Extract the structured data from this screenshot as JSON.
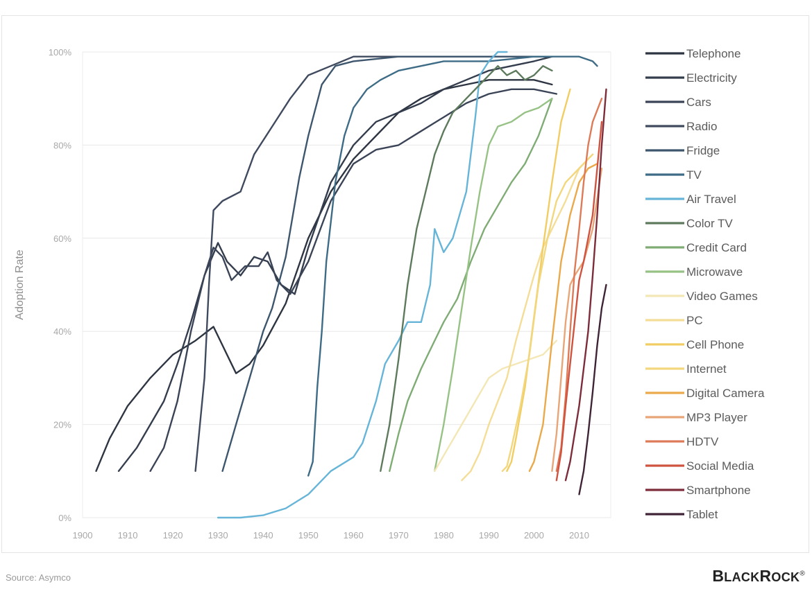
{
  "chart_data": {
    "type": "line",
    "title": "",
    "xlabel": "",
    "ylabel": "Adoption Rate",
    "xlim": [
      1900,
      2017
    ],
    "ylim": [
      0,
      100
    ],
    "x_ticks": [
      1900,
      1910,
      1920,
      1930,
      1940,
      1950,
      1960,
      1970,
      1980,
      1990,
      2000,
      2010
    ],
    "y_ticks": [
      0,
      20,
      40,
      60,
      80,
      100
    ],
    "y_tick_labels": [
      "0%",
      "20%",
      "40%",
      "60%",
      "80%",
      "100%"
    ],
    "grid": "horizontal",
    "legend_position": "right",
    "series": [
      {
        "name": "Telephone",
        "color": "#2e3542",
        "points": [
          [
            1903,
            10
          ],
          [
            1906,
            17
          ],
          [
            1910,
            24
          ],
          [
            1915,
            30
          ],
          [
            1920,
            35
          ],
          [
            1925,
            38
          ],
          [
            1929,
            41
          ],
          [
            1931,
            37
          ],
          [
            1934,
            31
          ],
          [
            1937,
            33
          ],
          [
            1940,
            37
          ],
          [
            1945,
            46
          ],
          [
            1950,
            60
          ],
          [
            1955,
            70
          ],
          [
            1960,
            77
          ],
          [
            1965,
            82
          ],
          [
            1970,
            87
          ],
          [
            1975,
            90
          ],
          [
            1980,
            92
          ],
          [
            1985,
            93
          ],
          [
            1990,
            94
          ],
          [
            1995,
            94
          ],
          [
            2000,
            94
          ],
          [
            2004,
            93
          ]
        ]
      },
      {
        "name": "Electricity",
        "color": "#343d4d",
        "points": [
          [
            1908,
            10
          ],
          [
            1912,
            15
          ],
          [
            1915,
            20
          ],
          [
            1918,
            25
          ],
          [
            1921,
            33
          ],
          [
            1924,
            42
          ],
          [
            1927,
            52
          ],
          [
            1930,
            59
          ],
          [
            1932,
            55
          ],
          [
            1935,
            52
          ],
          [
            1938,
            56
          ],
          [
            1941,
            55
          ],
          [
            1944,
            50
          ],
          [
            1947,
            48
          ],
          [
            1950,
            58
          ],
          [
            1955,
            72
          ],
          [
            1960,
            80
          ],
          [
            1965,
            85
          ],
          [
            1970,
            87
          ],
          [
            1975,
            89
          ],
          [
            1980,
            92
          ],
          [
            1985,
            94
          ],
          [
            1990,
            96
          ],
          [
            2000,
            98
          ],
          [
            2004,
            99
          ]
        ]
      },
      {
        "name": "Cars",
        "color": "#3a4456",
        "points": [
          [
            1915,
            10
          ],
          [
            1918,
            15
          ],
          [
            1921,
            25
          ],
          [
            1924,
            40
          ],
          [
            1927,
            52
          ],
          [
            1929,
            58
          ],
          [
            1931,
            56
          ],
          [
            1933,
            51
          ],
          [
            1936,
            54
          ],
          [
            1939,
            54
          ],
          [
            1941,
            57
          ],
          [
            1943,
            51
          ],
          [
            1946,
            48
          ],
          [
            1950,
            55
          ],
          [
            1955,
            68
          ],
          [
            1960,
            76
          ],
          [
            1965,
            79
          ],
          [
            1970,
            80
          ],
          [
            1975,
            83
          ],
          [
            1980,
            86
          ],
          [
            1985,
            89
          ],
          [
            1990,
            91
          ],
          [
            1995,
            92
          ],
          [
            2000,
            92
          ],
          [
            2005,
            91
          ]
        ]
      },
      {
        "name": "Radio",
        "color": "#3f4a5e",
        "points": [
          [
            1925,
            10
          ],
          [
            1927,
            30
          ],
          [
            1928,
            50
          ],
          [
            1929,
            66
          ],
          [
            1931,
            68
          ],
          [
            1935,
            70
          ],
          [
            1938,
            78
          ],
          [
            1942,
            84
          ],
          [
            1946,
            90
          ],
          [
            1950,
            95
          ],
          [
            1955,
            97
          ],
          [
            1960,
            99
          ],
          [
            1970,
            99
          ],
          [
            1980,
            99
          ],
          [
            1990,
            99
          ],
          [
            2000,
            99
          ],
          [
            2004,
            99
          ]
        ]
      },
      {
        "name": "Fridge",
        "color": "#3e566d",
        "points": [
          [
            1931,
            10
          ],
          [
            1934,
            20
          ],
          [
            1937,
            30
          ],
          [
            1940,
            40
          ],
          [
            1942,
            45
          ],
          [
            1945,
            56
          ],
          [
            1948,
            73
          ],
          [
            1950,
            82
          ],
          [
            1953,
            93
          ],
          [
            1956,
            97
          ],
          [
            1960,
            98
          ],
          [
            1970,
            99
          ],
          [
            1980,
            99
          ],
          [
            1990,
            99
          ],
          [
            2004,
            99
          ]
        ]
      },
      {
        "name": "TV",
        "color": "#3e6b85",
        "points": [
          [
            1950,
            9
          ],
          [
            1951,
            12
          ],
          [
            1952,
            28
          ],
          [
            1953,
            40
          ],
          [
            1954,
            55
          ],
          [
            1956,
            72
          ],
          [
            1958,
            82
          ],
          [
            1960,
            88
          ],
          [
            1963,
            92
          ],
          [
            1966,
            94
          ],
          [
            1970,
            96
          ],
          [
            1975,
            97
          ],
          [
            1980,
            98
          ],
          [
            1990,
            98
          ],
          [
            2000,
            99
          ],
          [
            2010,
            99
          ],
          [
            2013,
            98
          ],
          [
            2014,
            97
          ]
        ]
      },
      {
        "name": "Air Travel",
        "color": "#66b4d8",
        "points": [
          [
            1930,
            0
          ],
          [
            1935,
            0
          ],
          [
            1940,
            0.5
          ],
          [
            1945,
            2
          ],
          [
            1950,
            5
          ],
          [
            1955,
            10
          ],
          [
            1960,
            13
          ],
          [
            1962,
            16
          ],
          [
            1965,
            25
          ],
          [
            1967,
            33
          ],
          [
            1970,
            38
          ],
          [
            1972,
            42
          ],
          [
            1975,
            42
          ],
          [
            1977,
            50
          ],
          [
            1978,
            62
          ],
          [
            1980,
            57
          ],
          [
            1982,
            60
          ],
          [
            1985,
            70
          ],
          [
            1987,
            86
          ],
          [
            1988,
            95
          ],
          [
            1990,
            98
          ],
          [
            1992,
            100
          ],
          [
            1994,
            100
          ]
        ]
      },
      {
        "name": "Color TV",
        "color": "#5d7a5c",
        "points": [
          [
            1966,
            10
          ],
          [
            1968,
            20
          ],
          [
            1970,
            34
          ],
          [
            1972,
            50
          ],
          [
            1974,
            62
          ],
          [
            1976,
            70
          ],
          [
            1978,
            78
          ],
          [
            1980,
            83
          ],
          [
            1982,
            87
          ],
          [
            1985,
            90
          ],
          [
            1988,
            93
          ],
          [
            1990,
            95
          ],
          [
            1992,
            97
          ],
          [
            1994,
            95
          ],
          [
            1996,
            96
          ],
          [
            1998,
            94
          ],
          [
            2000,
            95
          ],
          [
            2002,
            97
          ],
          [
            2004,
            96
          ]
        ]
      },
      {
        "name": "Credit Card",
        "color": "#7fac74",
        "points": [
          [
            1968,
            10
          ],
          [
            1970,
            18
          ],
          [
            1972,
            25
          ],
          [
            1975,
            32
          ],
          [
            1978,
            38
          ],
          [
            1980,
            42
          ],
          [
            1983,
            47
          ],
          [
            1986,
            55
          ],
          [
            1989,
            62
          ],
          [
            1992,
            67
          ],
          [
            1995,
            72
          ],
          [
            1998,
            76
          ],
          [
            2001,
            82
          ],
          [
            2004,
            90
          ]
        ]
      },
      {
        "name": "Microwave",
        "color": "#97c285",
        "points": [
          [
            1978,
            10
          ],
          [
            1980,
            20
          ],
          [
            1982,
            32
          ],
          [
            1984,
            45
          ],
          [
            1986,
            58
          ],
          [
            1988,
            70
          ],
          [
            1990,
            80
          ],
          [
            1992,
            84
          ],
          [
            1995,
            85
          ],
          [
            1998,
            87
          ],
          [
            2001,
            88
          ],
          [
            2004,
            90
          ]
        ]
      },
      {
        "name": "Video Games",
        "color": "#f3e7b6",
        "points": [
          [
            1978,
            10
          ],
          [
            1981,
            15
          ],
          [
            1984,
            20
          ],
          [
            1987,
            25
          ],
          [
            1990,
            30
          ],
          [
            1993,
            32
          ],
          [
            1996,
            33
          ],
          [
            1999,
            34
          ],
          [
            2002,
            35
          ],
          [
            2005,
            38
          ]
        ]
      },
      {
        "name": "PC",
        "color": "#f4dd97",
        "points": [
          [
            1984,
            8
          ],
          [
            1986,
            10
          ],
          [
            1988,
            14
          ],
          [
            1990,
            20
          ],
          [
            1992,
            25
          ],
          [
            1994,
            30
          ],
          [
            1996,
            38
          ],
          [
            1998,
            45
          ],
          [
            2000,
            52
          ],
          [
            2002,
            58
          ],
          [
            2004,
            62
          ],
          [
            2007,
            68
          ],
          [
            2010,
            75
          ],
          [
            2013,
            78
          ]
        ]
      },
      {
        "name": "Cell Phone",
        "color": "#f1cd63",
        "points": [
          [
            1994,
            10
          ],
          [
            1995,
            12
          ],
          [
            1996,
            17
          ],
          [
            1998,
            28
          ],
          [
            2000,
            43
          ],
          [
            2002,
            58
          ],
          [
            2004,
            72
          ],
          [
            2006,
            85
          ],
          [
            2008,
            92
          ]
        ]
      },
      {
        "name": "Internet",
        "color": "#f2d77e",
        "points": [
          [
            1993,
            10
          ],
          [
            1994,
            11
          ],
          [
            1995,
            15
          ],
          [
            1997,
            24
          ],
          [
            1999,
            35
          ],
          [
            2001,
            50
          ],
          [
            2003,
            60
          ],
          [
            2005,
            68
          ],
          [
            2007,
            72
          ],
          [
            2010,
            75
          ],
          [
            2013,
            78
          ]
        ]
      },
      {
        "name": "Digital Camera",
        "color": "#eaa94a",
        "points": [
          [
            1999,
            10
          ],
          [
            2000,
            12
          ],
          [
            2002,
            20
          ],
          [
            2004,
            38
          ],
          [
            2006,
            55
          ],
          [
            2008,
            65
          ],
          [
            2010,
            72
          ],
          [
            2012,
            75
          ],
          [
            2014,
            76
          ]
        ]
      },
      {
        "name": "MP3 Player",
        "color": "#e8a578",
        "points": [
          [
            2004,
            10
          ],
          [
            2005,
            18
          ],
          [
            2006,
            30
          ],
          [
            2007,
            42
          ],
          [
            2008,
            50
          ],
          [
            2009,
            52
          ],
          [
            2011,
            55
          ],
          [
            2013,
            62
          ],
          [
            2015,
            75
          ]
        ]
      },
      {
        "name": "HDTV",
        "color": "#dd7a57",
        "points": [
          [
            2005,
            10
          ],
          [
            2006,
            15
          ],
          [
            2007,
            26
          ],
          [
            2008,
            40
          ],
          [
            2009,
            53
          ],
          [
            2010,
            62
          ],
          [
            2011,
            72
          ],
          [
            2012,
            80
          ],
          [
            2013,
            85
          ],
          [
            2015,
            90
          ]
        ]
      },
      {
        "name": "Social Media",
        "color": "#cf5440",
        "points": [
          [
            2005,
            8
          ],
          [
            2006,
            14
          ],
          [
            2007,
            24
          ],
          [
            2008,
            33
          ],
          [
            2009,
            42
          ],
          [
            2010,
            51
          ],
          [
            2011,
            55
          ],
          [
            2012,
            60
          ],
          [
            2013,
            65
          ],
          [
            2014,
            75
          ],
          [
            2015,
            85
          ]
        ]
      },
      {
        "name": "Smartphone",
        "color": "#7d2c3a",
        "points": [
          [
            2007,
            8
          ],
          [
            2008,
            12
          ],
          [
            2009,
            18
          ],
          [
            2010,
            24
          ],
          [
            2011,
            32
          ],
          [
            2012,
            40
          ],
          [
            2013,
            52
          ],
          [
            2014,
            65
          ],
          [
            2015,
            80
          ],
          [
            2016,
            92
          ]
        ]
      },
      {
        "name": "Tablet",
        "color": "#3f2336",
        "points": [
          [
            2010,
            5
          ],
          [
            2011,
            10
          ],
          [
            2012,
            18
          ],
          [
            2013,
            27
          ],
          [
            2014,
            37
          ],
          [
            2015,
            45
          ],
          [
            2016,
            50
          ]
        ]
      }
    ]
  },
  "footer": {
    "source": "Source: Asymco",
    "brand": "BlackRock",
    "brand_mark": "®"
  }
}
